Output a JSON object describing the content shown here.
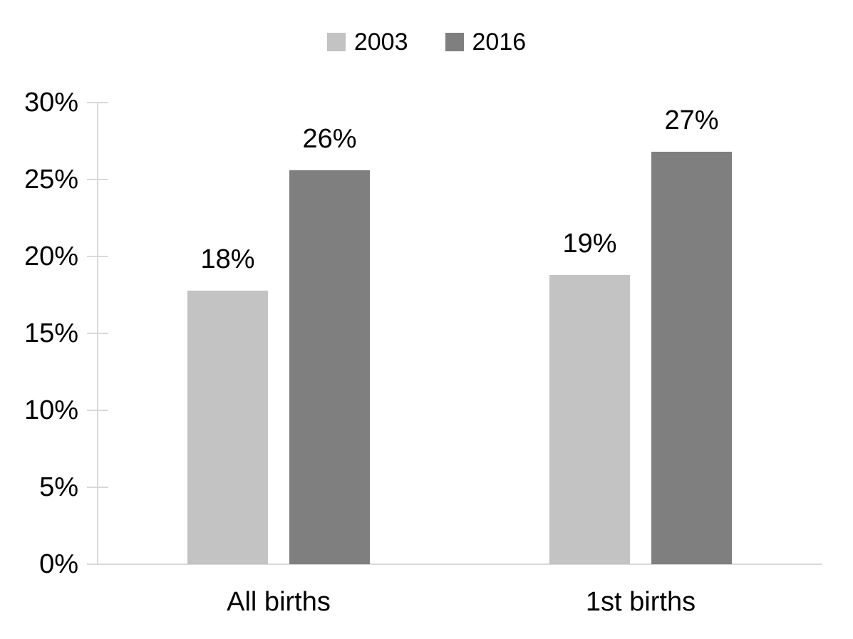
{
  "chart_data": {
    "type": "bar",
    "title": "",
    "categories": [
      "All births",
      "1st births"
    ],
    "series": [
      {
        "name": "2003",
        "color": "#c3c3c3",
        "values": [
          17.8,
          18.8
        ],
        "data_labels": [
          "18%",
          "19%"
        ]
      },
      {
        "name": "2016",
        "color": "#7f7f7f",
        "values": [
          25.6,
          26.8
        ],
        "data_labels": [
          "26%",
          "27%"
        ]
      }
    ],
    "ylabel": "",
    "xlabel": "",
    "ylim": [
      0,
      30
    ],
    "ytick_step": 5,
    "ytick_labels": [
      "0%",
      "5%",
      "10%",
      "15%",
      "20%",
      "25%",
      "30%"
    ],
    "grid": false,
    "legend_position": "top",
    "axis_color": "#d9d9d9",
    "text_color": "#000000",
    "background_color": "#ffffff"
  }
}
